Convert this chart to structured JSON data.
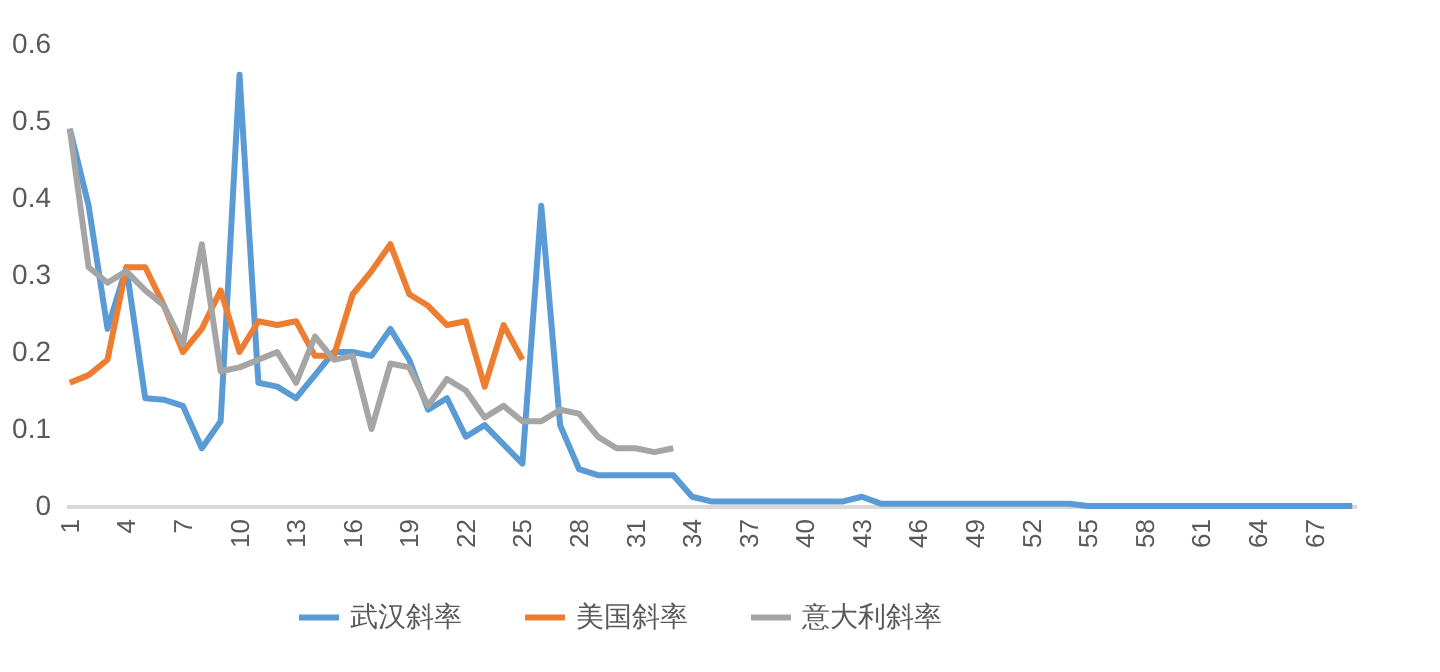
{
  "chart_data": {
    "type": "line",
    "categories": [
      "1",
      null,
      null,
      "4",
      null,
      null,
      "7",
      null,
      null,
      "10",
      null,
      null,
      "13",
      null,
      null,
      "16",
      null,
      null,
      "19",
      null,
      null,
      "22",
      null,
      null,
      "25",
      null,
      null,
      "28",
      null,
      null,
      "31",
      null,
      null,
      "34",
      null,
      null,
      "37",
      null,
      null,
      "40",
      null,
      null,
      "43",
      null,
      null,
      "46",
      null,
      null,
      "49",
      null,
      null,
      "52",
      null,
      null,
      "55",
      null,
      null,
      "58",
      null,
      null,
      "61",
      null,
      null,
      "64",
      null,
      null,
      "67",
      null,
      null
    ],
    "series": [
      {
        "name": "武汉斜率",
        "color": "#5b9bd5",
        "values": [
          0.49,
          0.39,
          0.23,
          0.31,
          0.14,
          0.138,
          0.13,
          0.075,
          0.11,
          0.56,
          0.16,
          0.155,
          0.14,
          0.17,
          0.2,
          0.2,
          0.195,
          0.23,
          0.19,
          0.125,
          0.14,
          0.09,
          0.105,
          0.08,
          0.055,
          0.39,
          0.105,
          0.048,
          0.04,
          0.04,
          0.04,
          0.04,
          0.04,
          0.012,
          0.006,
          0.006,
          0.006,
          0.006,
          0.006,
          0.006,
          0.006,
          0.006,
          0.012,
          0.003,
          0.003,
          0.003,
          0.003,
          0.003,
          0.003,
          0.003,
          0.003,
          0.003,
          0.003,
          0.003,
          0,
          0,
          0,
          0,
          0,
          0,
          0,
          0,
          0,
          0,
          0,
          0,
          0,
          0,
          0
        ]
      },
      {
        "name": "美国斜率",
        "color": "#ed7d31",
        "values": [
          0.16,
          0.17,
          0.19,
          0.31,
          0.31,
          0.26,
          0.2,
          0.23,
          0.28,
          0.2,
          0.24,
          0.235,
          0.24,
          0.195,
          0.195,
          0.275,
          0.305,
          0.34,
          0.275,
          0.26,
          0.235,
          0.24,
          0.155,
          0.235,
          0.19,
          null,
          null,
          null,
          null,
          null,
          null,
          null,
          null,
          null,
          null,
          null,
          null,
          null,
          null,
          null,
          null,
          null,
          null,
          null,
          null,
          null,
          null,
          null,
          null,
          null,
          null,
          null,
          null,
          null,
          null,
          null,
          null,
          null,
          null,
          null,
          null,
          null,
          null,
          null,
          null,
          null,
          null,
          null,
          null
        ]
      },
      {
        "name": "意大利斜率",
        "color": "#a5a5a5",
        "values": [
          0.49,
          0.31,
          0.29,
          0.305,
          0.28,
          0.26,
          0.21,
          0.34,
          0.175,
          0.18,
          0.19,
          0.2,
          0.16,
          0.22,
          0.19,
          0.195,
          0.1,
          0.185,
          0.18,
          0.13,
          0.165,
          0.15,
          0.115,
          0.13,
          0.11,
          0.11,
          0.125,
          0.12,
          0.09,
          0.075,
          0.075,
          0.07,
          0.075,
          null,
          null,
          null,
          null,
          null,
          null,
          null,
          null,
          null,
          null,
          null,
          null,
          null,
          null,
          null,
          null,
          null,
          null,
          null,
          null,
          null,
          null,
          null,
          null,
          null,
          null,
          null,
          null,
          null,
          null,
          null,
          null,
          null,
          null,
          null,
          null
        ]
      }
    ],
    "ylim": [
      0,
      0.6
    ],
    "yticks": [
      0,
      0.1,
      0.2,
      0.3,
      0.4,
      0.5,
      0.6
    ],
    "grid": false,
    "legend": "bottom"
  }
}
